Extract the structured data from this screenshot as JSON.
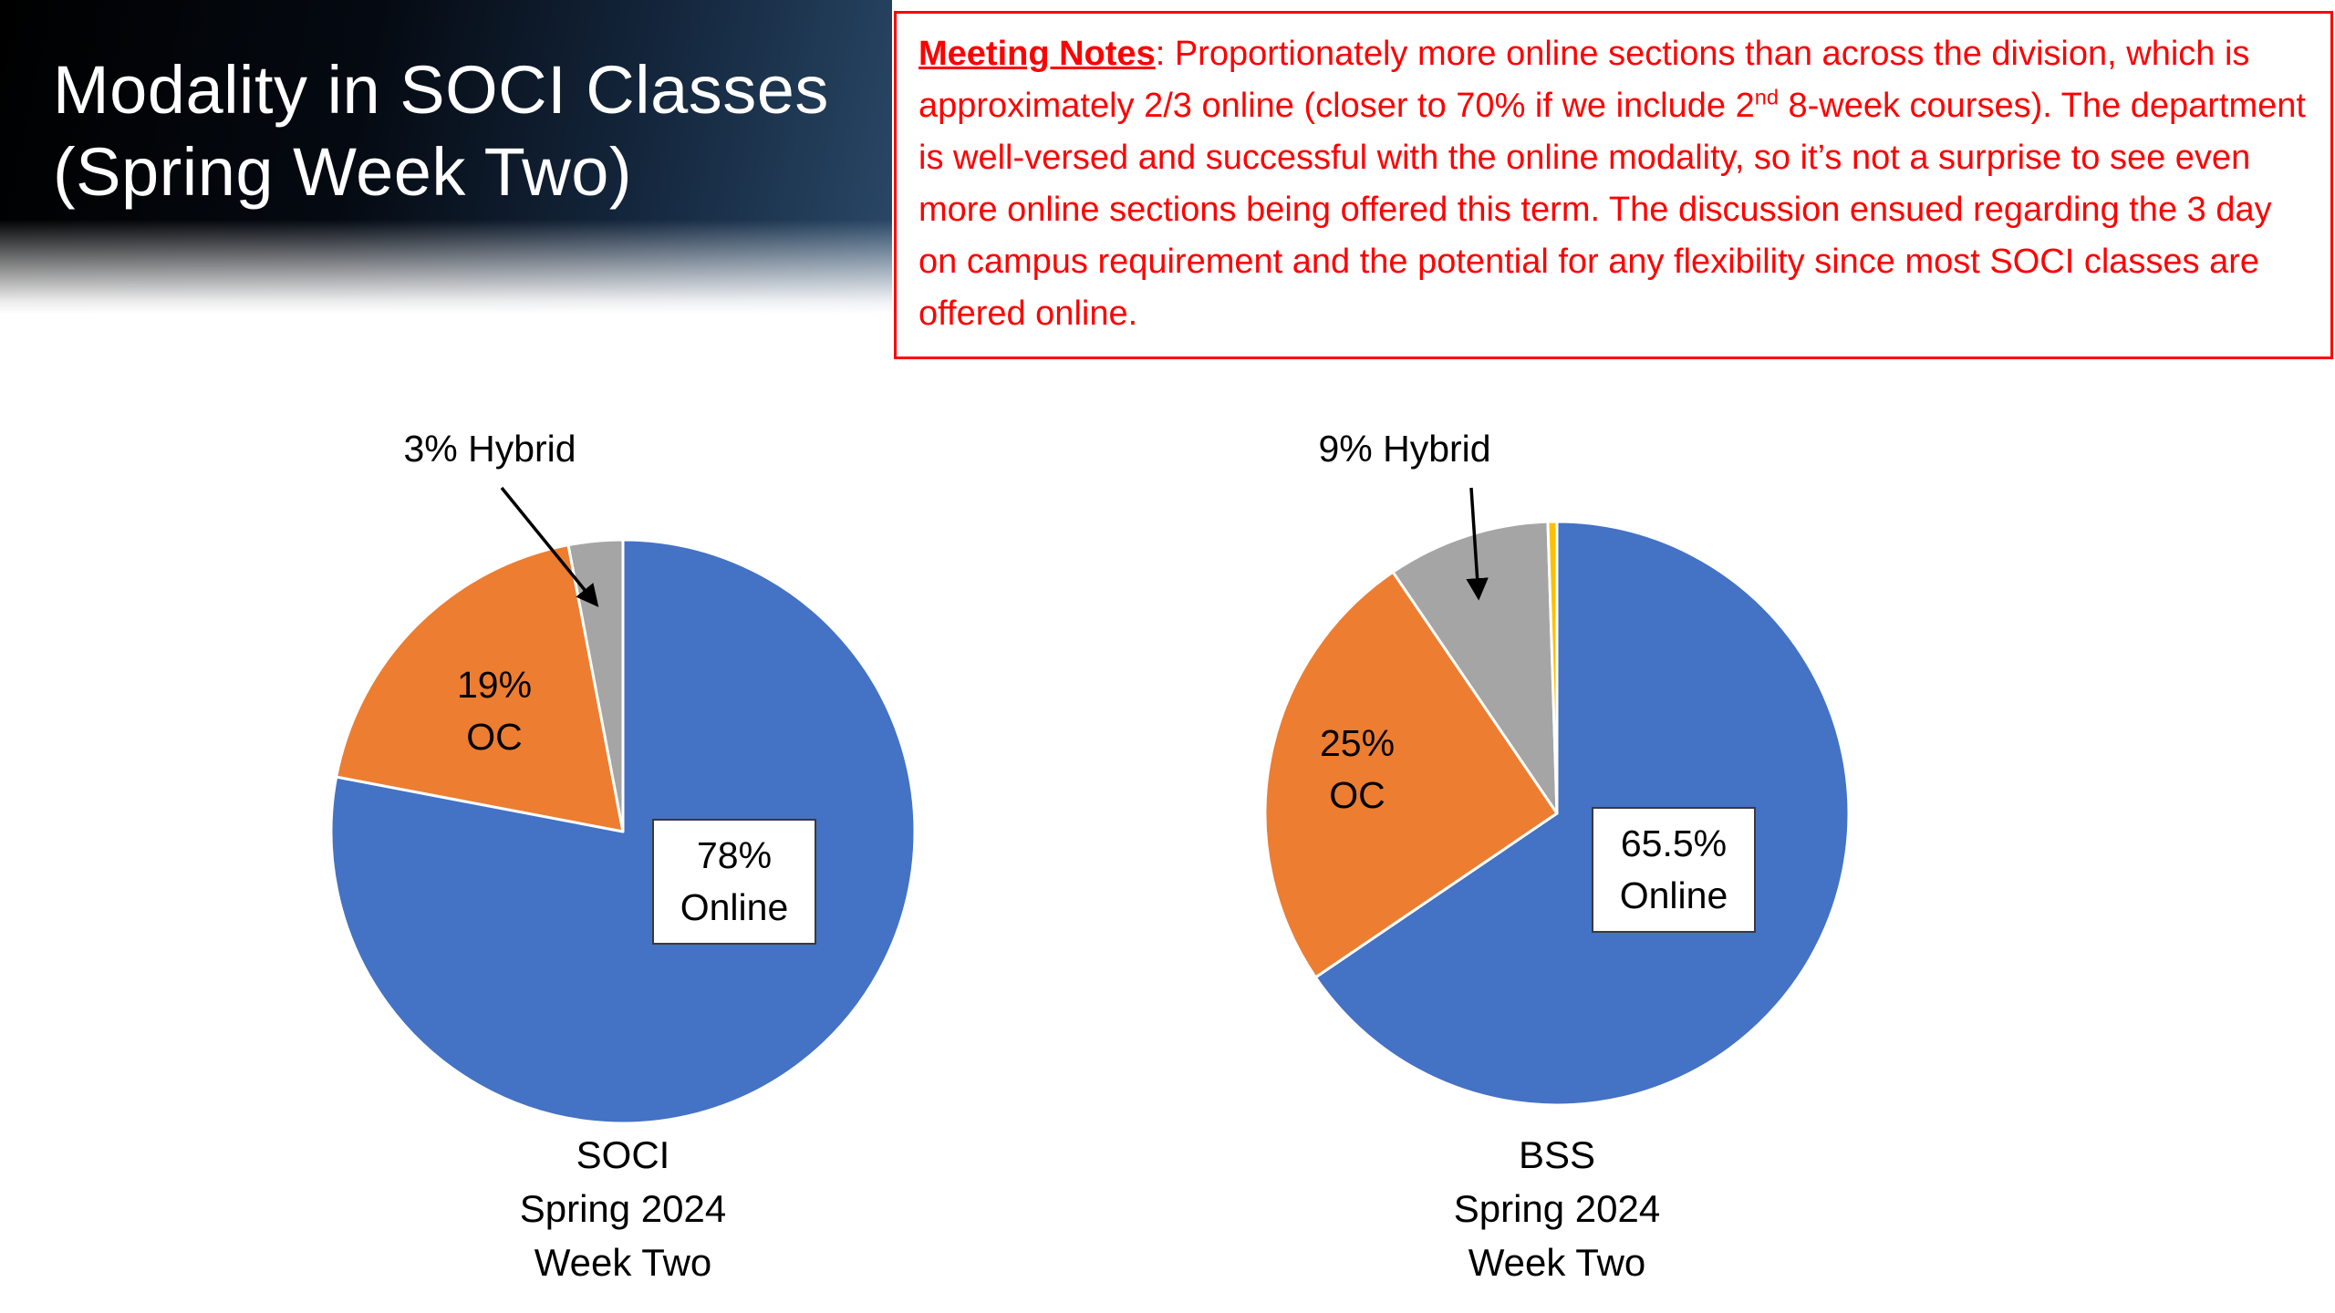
{
  "slide": {
    "title": {
      "line1": "Modality in SOCI Classes",
      "line2": "(Spring Week Two)"
    },
    "meeting_notes": {
      "heading": "Meeting Notes",
      "body_part1": ":  Proportionately more online sections than across the division, which is approximately 2/3 online (closer to 70% if we include 2",
      "superscript": "nd",
      "body_part2": " 8-week courses). The department is well-versed and successful with the online modality, so it’s not a surprise to see even more online sections being offered this term. The discussion ensued regarding the 3 day on campus requirement and the potential for any flexibility since most SOCI classes are offered online.",
      "text_color": "#FF0000",
      "border_color": "#FF0000"
    }
  },
  "chart_data": [
    {
      "type": "pie",
      "title": "SOCI Spring 2024 Week Two",
      "legend": false,
      "slices": [
        {
          "label": "Online",
          "value": 78,
          "color": "#4472C4"
        },
        {
          "label": "OC",
          "value": 19,
          "color": "#ED7D31"
        },
        {
          "label": "Hybrid",
          "value": 3,
          "color": "#A5A5A5"
        }
      ],
      "callout_label": "3% Hybrid",
      "oc_label_line1": "19%",
      "oc_label_line2": "OC",
      "online_label_line1": "78%",
      "online_label_line2": "Online",
      "caption_line1": "SOCI",
      "caption_line2": "Spring 2024",
      "caption_line3": "Week Two"
    },
    {
      "type": "pie",
      "title": "BSS Spring 2024 Week Two",
      "legend": false,
      "slices": [
        {
          "label": "Online",
          "value": 65.5,
          "color": "#4472C4"
        },
        {
          "label": "OC",
          "value": 25,
          "color": "#ED7D31"
        },
        {
          "label": "Hybrid",
          "value": 9,
          "color": "#A5A5A5"
        },
        {
          "label": "",
          "value": 0.5,
          "color": "#FFC000"
        }
      ],
      "callout_label": "9% Hybrid",
      "oc_label_line1": "25%",
      "oc_label_line2": "OC",
      "online_label_line1": "65.5%",
      "online_label_line2": "Online",
      "caption_line1": "BSS",
      "caption_line2": "Spring 2024",
      "caption_line3": "Week Two"
    }
  ]
}
